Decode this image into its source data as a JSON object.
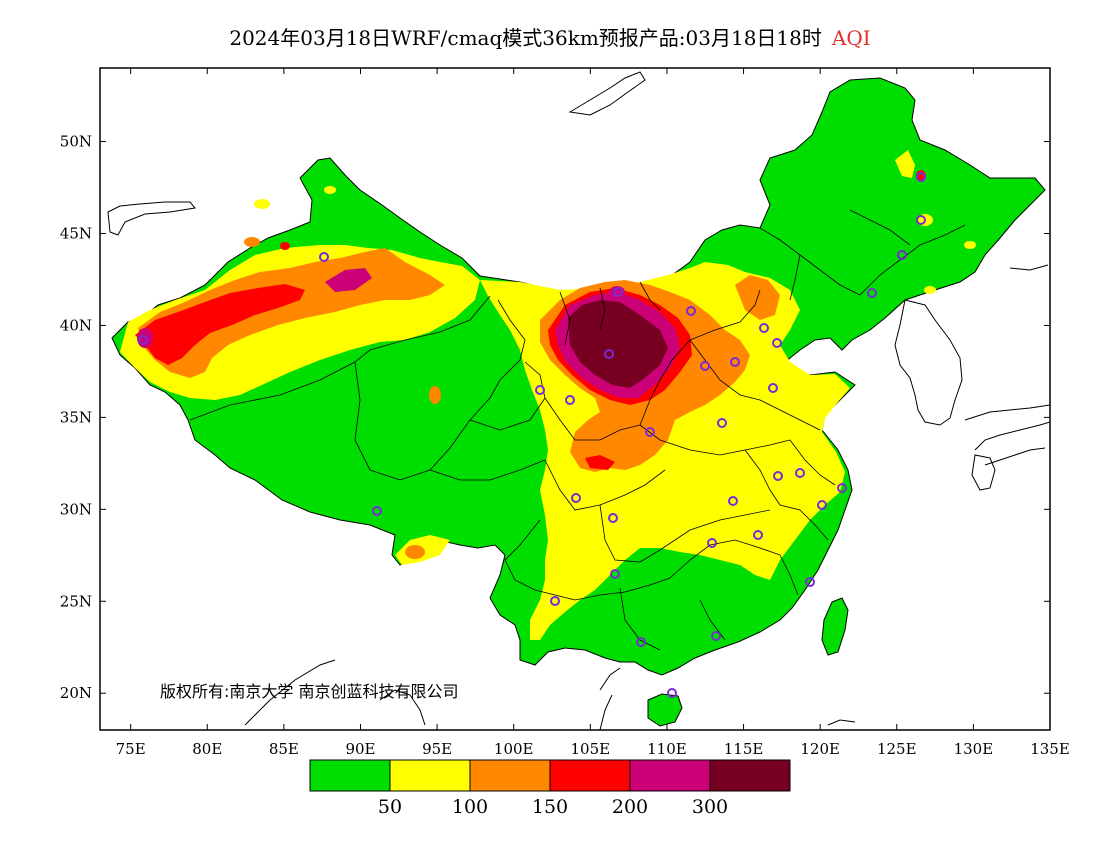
{
  "title": {
    "text": "2024年03月18日WRF/cmaq模式36km预报产品:03月18日18时",
    "variable": "AQI",
    "variable_color": "#e03030"
  },
  "axes": {
    "lon_ticks": [
      "75E",
      "80E",
      "85E",
      "90E",
      "95E",
      "100E",
      "105E",
      "110E",
      "115E",
      "120E",
      "125E",
      "130E",
      "135E"
    ],
    "lat_ticks": [
      "20N",
      "25N",
      "30N",
      "35N",
      "40N",
      "45N",
      "50N"
    ],
    "lon_range": [
      73,
      135
    ],
    "lat_range": [
      18,
      54
    ]
  },
  "legend": {
    "colors": [
      "#00dd00",
      "#ffff00",
      "#ff8800",
      "#ff0000",
      "#cc0077",
      "#770022"
    ],
    "labels": [
      "50",
      "100",
      "150",
      "200",
      "300"
    ]
  },
  "copyright": "版权所有:南京大学 南京创蓝科技有限公司",
  "colors": {
    "good": "#00dd00",
    "moderate": "#ffff00",
    "sensitive": "#ff8800",
    "unhealthy": "#ff0000",
    "very_unhealthy": "#cc0077",
    "hazardous": "#770022",
    "station_marker": "#7a2bd6"
  }
}
